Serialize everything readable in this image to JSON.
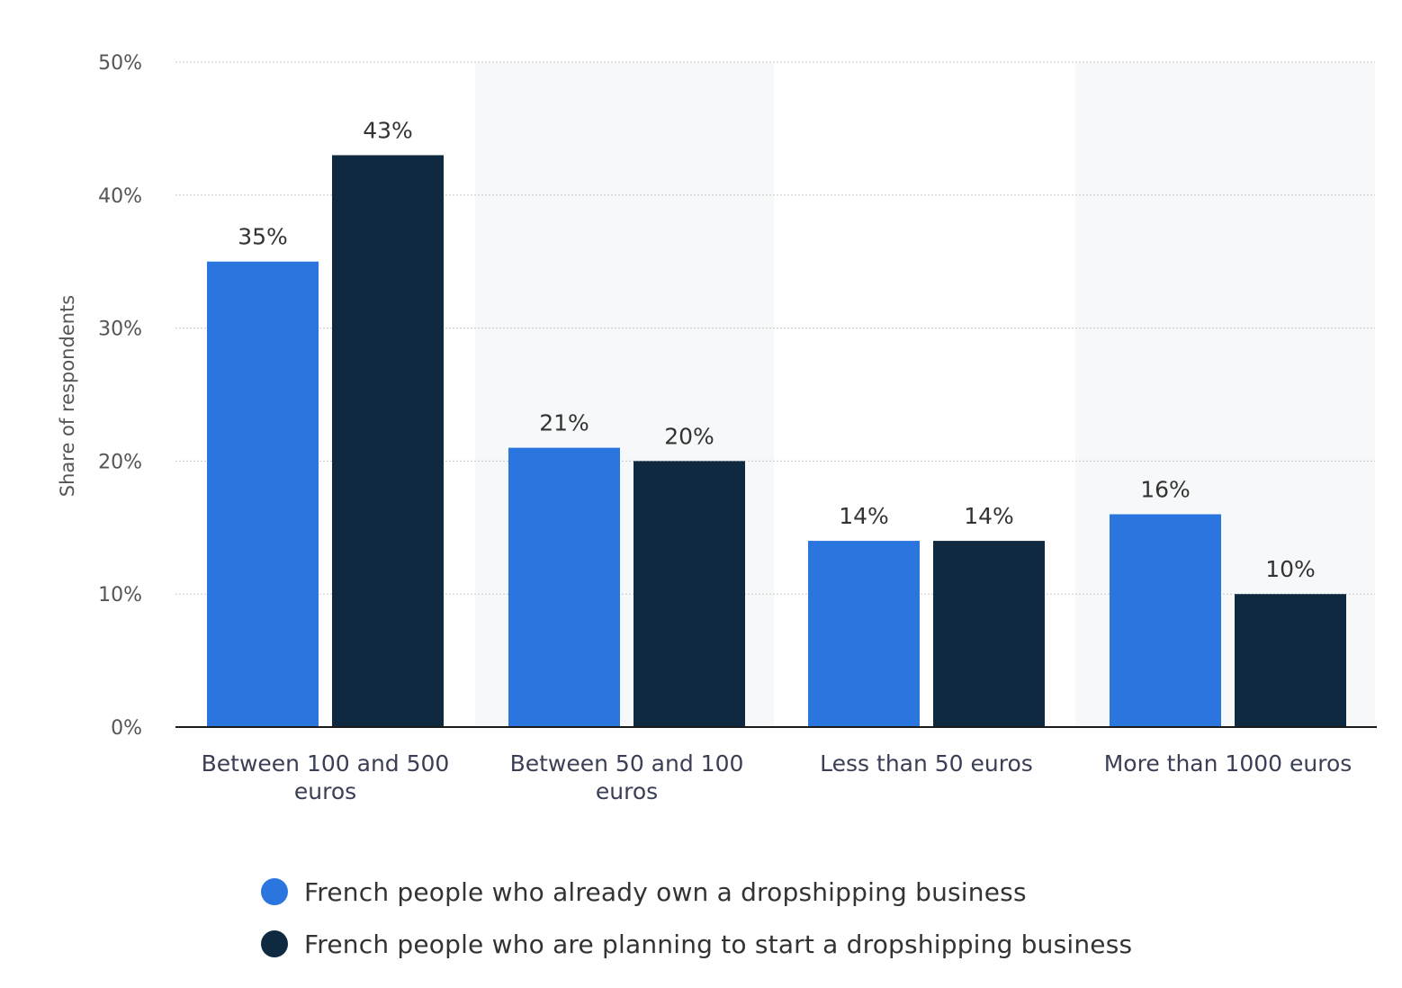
{
  "colors": {
    "series_1": "#2a76de",
    "series_2": "#0f2940",
    "grid": "#c8c8c8",
    "axis": "#1a1a1a",
    "tick_text": "#555555",
    "category_text": "#3a3f55",
    "value_text": "#333333",
    "band": "#f7f8f9"
  },
  "chart_data": {
    "type": "bar",
    "ylabel": "Share of respondents",
    "ylim": [
      0,
      50
    ],
    "yticks": [
      0,
      10,
      20,
      30,
      40,
      50
    ],
    "ytick_labels": [
      "0%",
      "10%",
      "20%",
      "30%",
      "40%",
      "50%"
    ],
    "categories": [
      [
        "Between 100 and 500",
        "euros"
      ],
      [
        "Between 50 and 100",
        "euros"
      ],
      [
        "Less than 50 euros"
      ],
      [
        "More than 1000 euros"
      ]
    ],
    "series": [
      {
        "name": "French people who already own a dropshipping business",
        "values": [
          35,
          21,
          14,
          16
        ],
        "labels": [
          "35%",
          "21%",
          "14%",
          "16%"
        ]
      },
      {
        "name": "French people who are planning to start a dropshipping business",
        "values": [
          43,
          20,
          14,
          10
        ],
        "labels": [
          "43%",
          "20%",
          "14%",
          "10%"
        ]
      }
    ],
    "grid": true,
    "legend_position": "bottom"
  }
}
